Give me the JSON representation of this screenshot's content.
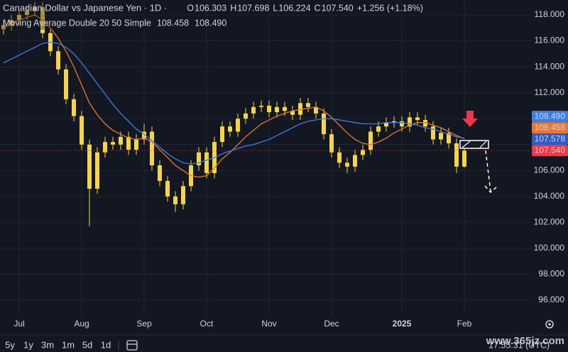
{
  "header": {
    "title": "Canadian Dollar vs Japanese Yen · 1D ·",
    "ohlc": [
      {
        "key": "O",
        "value": "106.303"
      },
      {
        "key": "H",
        "value": "107.698"
      },
      {
        "key": "L",
        "value": "106.224"
      },
      {
        "key": "C",
        "value": "107.540"
      }
    ],
    "change": "+1.256 (+1.18%)"
  },
  "indicator": {
    "label": "Moving Average Double 20 50 Simple",
    "values": [
      "108.458",
      "108.490"
    ]
  },
  "chart_data": {
    "type": "candlestick",
    "color": "#f5d547",
    "categories": [
      null,
      null,
      "Jul",
      null,
      null,
      null,
      null,
      null,
      null,
      null,
      "Aug",
      null,
      null,
      null,
      null,
      null,
      null,
      null,
      "Sep",
      null,
      null,
      null,
      null,
      null,
      null,
      null,
      "Oct",
      null,
      null,
      null,
      null,
      null,
      null,
      null,
      "Nov",
      null,
      null,
      null,
      null,
      null,
      null,
      null,
      "Dec",
      null,
      null,
      null,
      null,
      null,
      null,
      null,
      null,
      "2025",
      null,
      null,
      null,
      null,
      null,
      null,
      null,
      "Feb"
    ],
    "open": [
      116.9,
      117.2,
      117.6,
      118.0,
      118.3,
      118.6,
      116.6,
      115.2,
      113.8,
      111.5,
      110.2,
      108.0,
      104.6,
      107.4,
      108.2,
      108.0,
      108.6,
      107.6,
      108.4,
      109.0,
      106.4,
      105.2,
      104.0,
      103.4,
      104.8,
      106.4,
      107.4,
      105.8,
      108.2,
      109.4,
      109.0,
      110.0,
      110.4,
      110.9,
      111.0,
      110.5,
      110.9,
      110.6,
      110.3,
      111.2,
      110.9,
      110.4,
      108.8,
      107.4,
      106.6,
      106.3,
      107.2,
      107.6,
      109.0,
      109.4,
      109.7,
      109.8,
      109.4,
      110.1,
      109.9,
      109.4,
      108.4,
      108.9,
      108.1,
      106.303
    ],
    "high": [
      117.6,
      118.0,
      118.4,
      118.7,
      119.0,
      119.0,
      117.0,
      115.6,
      114.2,
      111.9,
      110.6,
      108.4,
      107.8,
      108.6,
      108.6,
      109.0,
      109.0,
      108.8,
      109.6,
      109.4,
      106.8,
      105.6,
      104.4,
      105.2,
      106.8,
      107.8,
      107.8,
      108.6,
      109.8,
      109.8,
      110.4,
      110.8,
      111.3,
      111.4,
      111.4,
      111.3,
      111.3,
      111.0,
      111.6,
      111.6,
      111.3,
      110.8,
      109.2,
      107.8,
      107.0,
      107.6,
      108.0,
      109.4,
      109.8,
      110.1,
      110.2,
      110.2,
      110.5,
      110.5,
      110.3,
      109.8,
      109.3,
      109.3,
      108.5,
      107.698
    ],
    "low": [
      116.5,
      116.8,
      117.2,
      117.6,
      117.9,
      116.2,
      114.8,
      113.4,
      111.1,
      109.8,
      107.6,
      101.7,
      104.2,
      107.0,
      107.6,
      107.6,
      107.2,
      107.2,
      108.0,
      106.0,
      104.8,
      103.6,
      102.8,
      103.0,
      104.4,
      106.0,
      105.4,
      105.4,
      107.8,
      108.6,
      108.6,
      109.6,
      110.0,
      110.5,
      110.1,
      110.1,
      110.2,
      109.9,
      109.9,
      110.5,
      110.0,
      108.4,
      107.0,
      106.2,
      105.8,
      105.9,
      106.8,
      107.2,
      108.6,
      109.0,
      109.3,
      109.0,
      109.0,
      109.5,
      109.0,
      108.0,
      108.0,
      107.7,
      105.8,
      106.224
    ],
    "close": [
      117.2,
      117.6,
      118.0,
      118.3,
      118.6,
      116.6,
      115.2,
      113.8,
      111.5,
      110.2,
      108.0,
      104.6,
      107.4,
      108.2,
      108.0,
      108.6,
      107.6,
      108.4,
      109.0,
      106.4,
      105.2,
      104.0,
      103.4,
      104.8,
      106.4,
      107.4,
      105.8,
      108.2,
      109.4,
      109.0,
      110.0,
      110.4,
      110.9,
      111.0,
      110.5,
      110.9,
      110.6,
      110.3,
      111.2,
      110.9,
      110.4,
      108.8,
      107.4,
      106.6,
      106.3,
      107.2,
      107.6,
      109.0,
      109.4,
      109.7,
      109.8,
      109.4,
      110.1,
      109.9,
      109.4,
      108.4,
      108.9,
      108.1,
      106.3,
      107.54
    ],
    "series": [
      {
        "color": "#e8772e",
        "values": [
          117.0,
          117.3,
          117.6,
          117.8,
          118.0,
          117.6,
          117.0,
          116.2,
          115.2,
          114.0,
          112.6,
          111.2,
          110.3,
          109.6,
          109.1,
          108.8,
          108.5,
          108.4,
          108.5,
          108.2,
          107.6,
          107.0,
          106.4,
          106.0,
          105.6,
          105.5,
          105.6,
          106.2,
          106.9,
          107.4,
          108.0,
          108.6,
          109.1,
          109.6,
          109.9,
          110.2,
          110.4,
          110.6,
          110.7,
          110.8,
          110.9,
          110.6,
          110.1,
          109.5,
          108.9,
          108.4,
          108.1,
          108.0,
          108.2,
          108.5,
          108.9,
          109.2,
          109.5,
          109.7,
          109.7,
          109.5,
          109.3,
          109.0,
          108.7,
          108.458
        ]
      },
      {
        "color": "#3d7ee6",
        "values": [
          114.3,
          114.6,
          114.9,
          115.2,
          115.5,
          115.8,
          115.9,
          115.8,
          115.5,
          115.0,
          114.3,
          113.5,
          112.7,
          111.9,
          111.1,
          110.4,
          109.8,
          109.2,
          108.8,
          108.3,
          107.8,
          107.3,
          106.9,
          106.6,
          106.5,
          106.6,
          106.8,
          107.0,
          107.3,
          107.5,
          107.7,
          107.9,
          108.0,
          108.2,
          108.4,
          108.7,
          109.0,
          109.3,
          109.6,
          109.8,
          109.9,
          110.0,
          110.0,
          109.9,
          109.8,
          109.7,
          109.6,
          109.6,
          109.6,
          109.7,
          109.7,
          109.7,
          109.6,
          109.5,
          109.3,
          109.2,
          109.0,
          108.8,
          108.6,
          108.49
        ]
      }
    ],
    "ylim": [
      94.8,
      119.15
    ],
    "yticks": [
      {
        "value": 96,
        "label": "96.000"
      },
      {
        "value": 98,
        "label": "98.000"
      },
      {
        "value": 100,
        "label": "100.000"
      },
      {
        "value": 102,
        "label": "102.000"
      },
      {
        "value": 104,
        "label": "104.000"
      },
      {
        "value": 106,
        "label": "106.000"
      },
      {
        "value": 108,
        "label": "108.000"
      },
      {
        "value": 110,
        "label": "110.000"
      },
      {
        "value": 112,
        "label": "112.000"
      },
      {
        "value": 114,
        "label": "114.000"
      },
      {
        "value": 116,
        "label": "116.000"
      },
      {
        "value": 118,
        "label": "118.000"
      }
    ],
    "grid": true,
    "price_tags": [
      {
        "value": 108.49,
        "label": "108.490",
        "color": "#3d7ee6"
      },
      {
        "value": 108.458,
        "label": "108.458",
        "color": "#e8772e"
      },
      {
        "value": 107.578,
        "label": "107.578",
        "color": "#2d5cc8"
      },
      {
        "value": 107.54,
        "label": "107.540",
        "color": "#f23645"
      }
    ]
  },
  "toolbar": {
    "ranges": [
      "5y",
      "1y",
      "3m",
      "1m",
      "5d",
      "1d"
    ],
    "time": "17:55:31 (UTC)"
  },
  "watermark": "www.365jz.com"
}
